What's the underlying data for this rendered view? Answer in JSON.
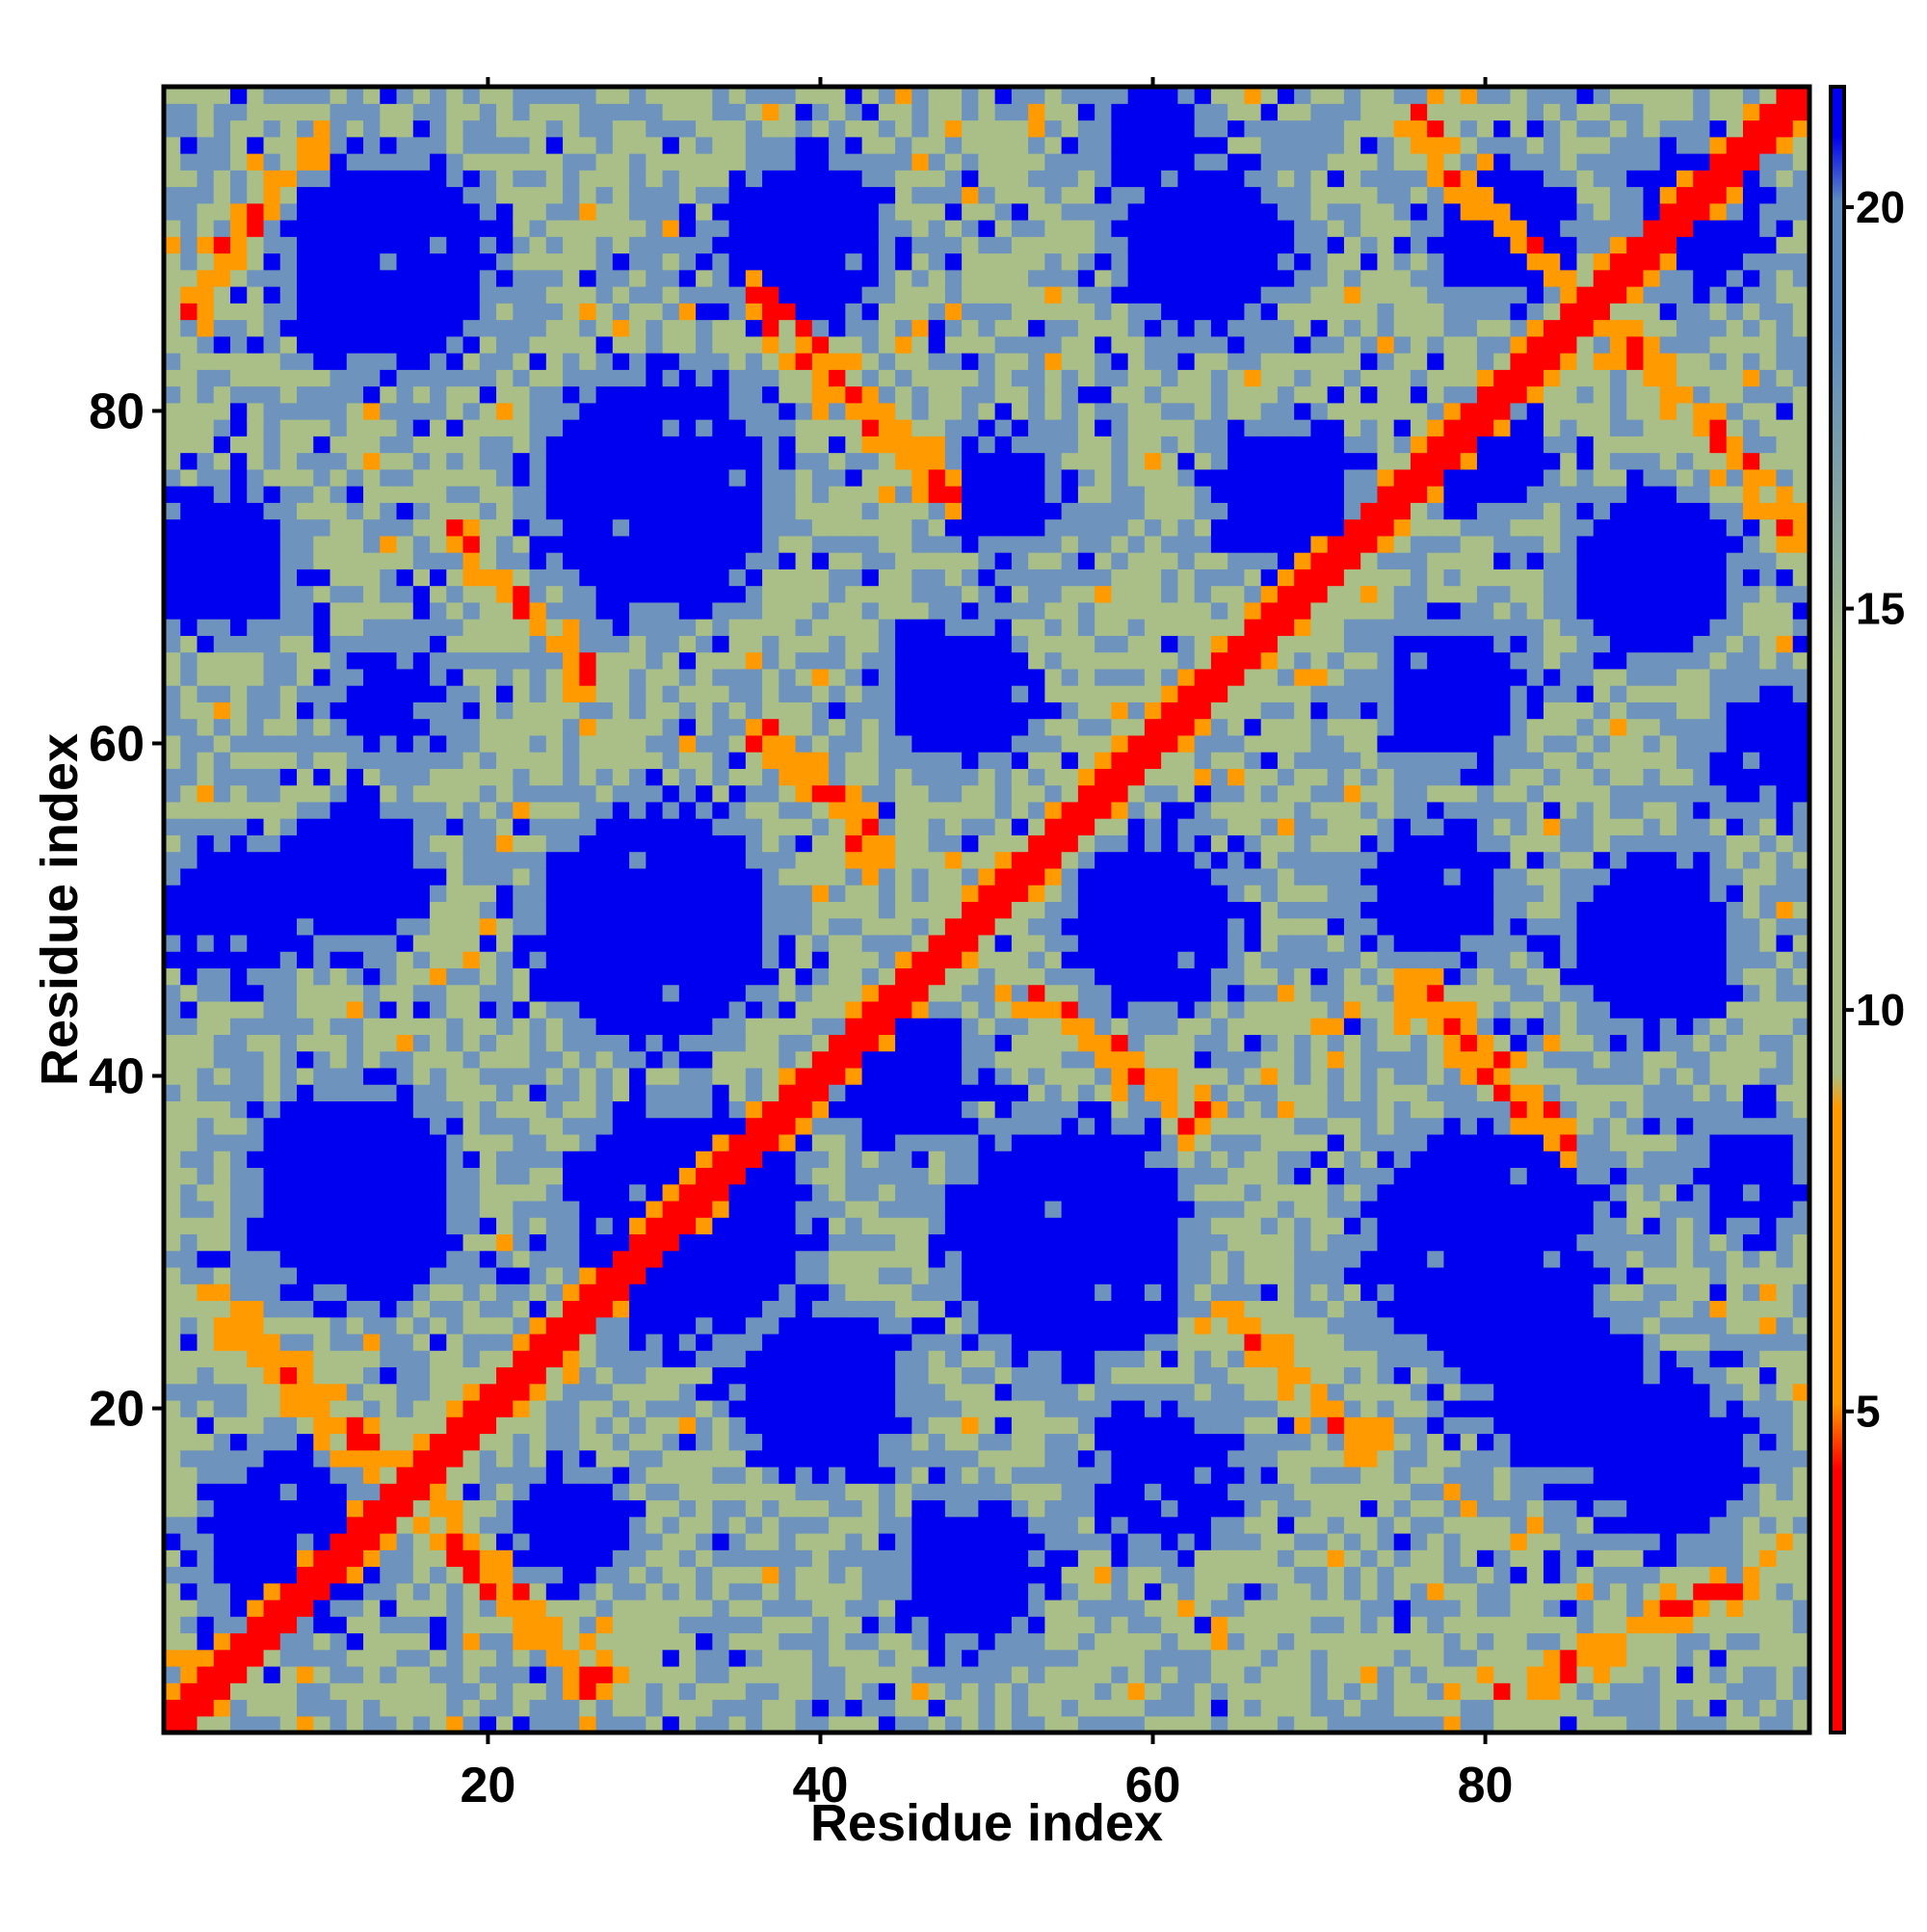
{
  "chart_data": {
    "type": "heatmap",
    "title": "",
    "xlabel": "Residue index",
    "ylabel": "Residue index",
    "n_residues": 99,
    "xlim": [
      1,
      99
    ],
    "ylim": [
      1,
      99
    ],
    "x_ticks": [
      20,
      40,
      60,
      80
    ],
    "y_ticks": [
      20,
      40,
      60,
      80
    ],
    "colorbar": {
      "range": [
        1,
        21.5
      ],
      "ticks": [
        5,
        10,
        15,
        20
      ],
      "colors": [
        "#ff0000",
        "#ff9a00",
        "#a9bf87",
        "#5f8cc0",
        "#0000f0"
      ]
    },
    "colors": {
      "near": "#ff0000",
      "contact": "#ff9a00",
      "mid": "#a9bf87",
      "far_mid": "#6e93bd",
      "far": "#0000f0"
    },
    "structure": {
      "diagonal_band": "red along i = j, orange flanks",
      "secondary_diagonals": [
        {
          "from": [
            3,
            27
          ],
          "to": [
            27,
            3
          ]
        },
        {
          "from": [
            36,
            87
          ],
          "to": [
            48,
            75
          ]
        },
        {
          "from": [
            18,
            73
          ],
          "to": [
            26,
            64
          ]
        },
        {
          "from": [
            36,
            61
          ],
          "to": [
            44,
            53
          ]
        },
        {
          "from": [
            53,
            45
          ],
          "to": [
            63,
            37
          ]
        },
        {
          "from": [
            64,
            26
          ],
          "to": [
            73,
            18
          ]
        },
        {
          "from": [
            75,
            46
          ],
          "to": [
            85,
            36
          ]
        },
        {
          "from": [
            75,
            98
          ],
          "to": [
            99,
            73
          ]
        },
        {
          "from": [
            2,
            86
          ],
          "to": [
            10,
            97
          ]
        },
        {
          "from": [
            81,
            3
          ],
          "to": [
            97,
            10
          ]
        }
      ],
      "far_regions": "blue blobs between contact ridges"
    }
  }
}
